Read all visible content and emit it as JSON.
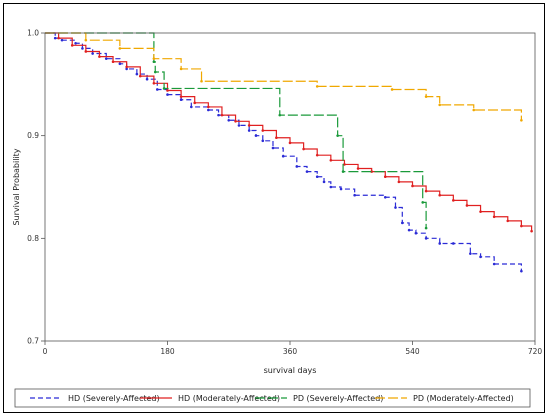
{
  "chart_data": {
    "type": "line",
    "step": true,
    "title": "",
    "xlabel": "survival days",
    "ylabel": "Survival Probability",
    "xlim": [
      0,
      720
    ],
    "ylim": [
      0.7,
      1.0
    ],
    "xticks": [
      0,
      180,
      360,
      540,
      720
    ],
    "yticks": [
      0.7,
      0.8,
      0.9,
      1.0
    ],
    "ytick_labels": [
      "0.7",
      "0.8",
      "0.9",
      "1.0"
    ],
    "grid": false,
    "legend_position": "bottom",
    "series": [
      {
        "name": "HD (Severely-Affected)",
        "color": "#2b2bd6",
        "dash": "dashed",
        "x": [
          0,
          15,
          25,
          45,
          55,
          70,
          90,
          110,
          120,
          135,
          150,
          165,
          180,
          200,
          215,
          240,
          255,
          270,
          285,
          300,
          310,
          320,
          335,
          350,
          370,
          385,
          400,
          410,
          420,
          435,
          455,
          500,
          515,
          525,
          535,
          545,
          560,
          580,
          600,
          625,
          640,
          660,
          700
        ],
        "y": [
          1.0,
          0.995,
          0.993,
          0.99,
          0.985,
          0.98,
          0.975,
          0.97,
          0.965,
          0.96,
          0.955,
          0.945,
          0.94,
          0.935,
          0.928,
          0.925,
          0.92,
          0.915,
          0.91,
          0.905,
          0.9,
          0.895,
          0.888,
          0.88,
          0.87,
          0.865,
          0.86,
          0.855,
          0.85,
          0.848,
          0.842,
          0.84,
          0.83,
          0.815,
          0.808,
          0.805,
          0.8,
          0.795,
          0.795,
          0.785,
          0.782,
          0.775,
          0.768
        ]
      },
      {
        "name": "HD (Moderately-Affected)",
        "color": "#e02020",
        "dash": "solid",
        "x": [
          0,
          20,
          40,
          60,
          80,
          100,
          120,
          140,
          160,
          180,
          200,
          220,
          240,
          260,
          280,
          300,
          320,
          340,
          360,
          380,
          400,
          420,
          440,
          460,
          480,
          500,
          520,
          540,
          560,
          580,
          600,
          620,
          640,
          660,
          680,
          700,
          715
        ],
        "y": [
          1.0,
          0.995,
          0.988,
          0.982,
          0.977,
          0.972,
          0.967,
          0.958,
          0.951,
          0.944,
          0.938,
          0.932,
          0.928,
          0.92,
          0.914,
          0.91,
          0.905,
          0.898,
          0.893,
          0.887,
          0.881,
          0.876,
          0.872,
          0.868,
          0.865,
          0.86,
          0.855,
          0.851,
          0.846,
          0.842,
          0.837,
          0.832,
          0.826,
          0.821,
          0.817,
          0.812,
          0.807
        ]
      },
      {
        "name": "PD (Severely-Affected)",
        "color": "#1a9a3a",
        "dash": "longdash",
        "x": [
          0,
          160,
          162,
          175,
          345,
          430,
          438,
          555,
          560
        ],
        "y": [
          1.0,
          0.972,
          0.962,
          0.946,
          0.92,
          0.9,
          0.865,
          0.835,
          0.81
        ]
      },
      {
        "name": "PD (Moderately-Affected)",
        "color": "#f0a800",
        "dash": "longdash",
        "x": [
          0,
          60,
          110,
          160,
          200,
          230,
          400,
          510,
          560,
          580,
          630,
          700
        ],
        "y": [
          1.0,
          0.993,
          0.985,
          0.975,
          0.965,
          0.953,
          0.948,
          0.945,
          0.938,
          0.93,
          0.925,
          0.915
        ]
      }
    ]
  }
}
